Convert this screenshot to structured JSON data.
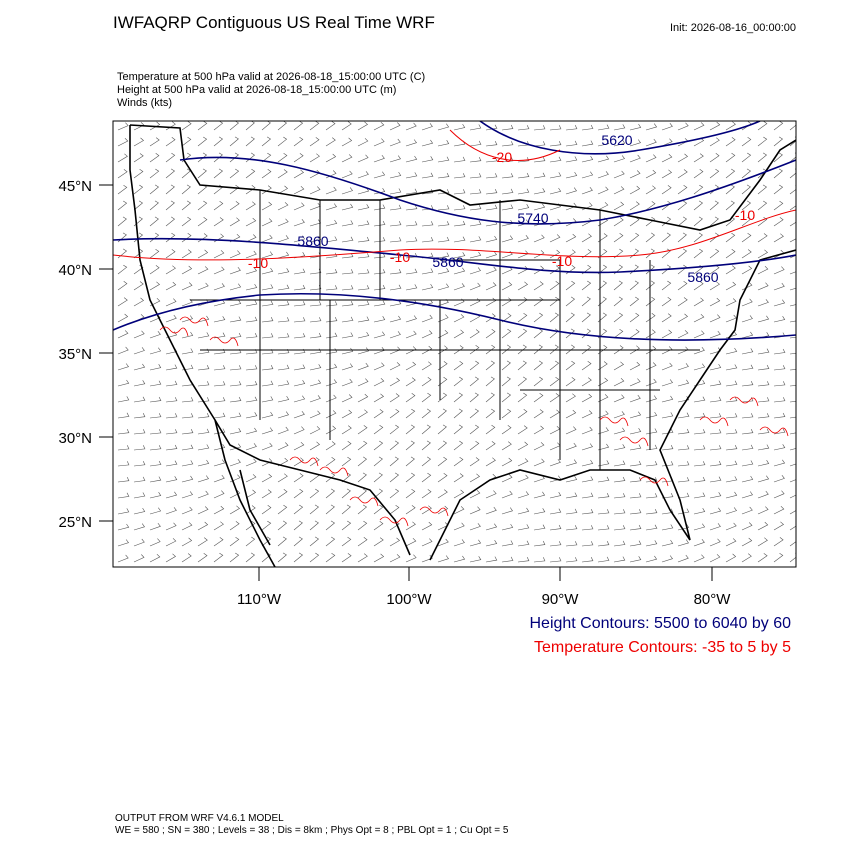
{
  "header": {
    "title": "IWFAQRP Contiguous US Real Time WRF",
    "init": "Init: 2026-08-16_00:00:00"
  },
  "fields": [
    "Temperature at 500 hPa valid at 2026-08-18_15:00:00 UTC   (C)",
    "Height at 500 hPa valid at 2026-08-18_15:00:00 UTC   (m)",
    "Winds   (kts)"
  ],
  "map": {
    "lat_labels": [
      "45°N",
      "40°N",
      "35°N",
      "30°N",
      "25°N"
    ],
    "lon_labels": [
      "110°W",
      "100°W",
      "90°W",
      "80°W"
    ],
    "height_labels": [
      "5620",
      "5740",
      "5860",
      "5860",
      "5860"
    ],
    "temperature_labels": [
      "-20",
      "-10",
      "-10",
      "-10",
      "-10"
    ]
  },
  "legend": {
    "height": "Height Contours: 5500 to 6040 by 60",
    "temperature": "Temperature Contours: -35 to 5 by 5"
  },
  "footer": {
    "model": "OUTPUT FROM WRF V4.6.1 MODEL",
    "settings": "WE = 580 ; SN = 380 ; Levels = 38 ; Dis = 8km ; Phys Opt = 8 ; PBL Opt = 1 ; Cu Opt = 5"
  }
}
